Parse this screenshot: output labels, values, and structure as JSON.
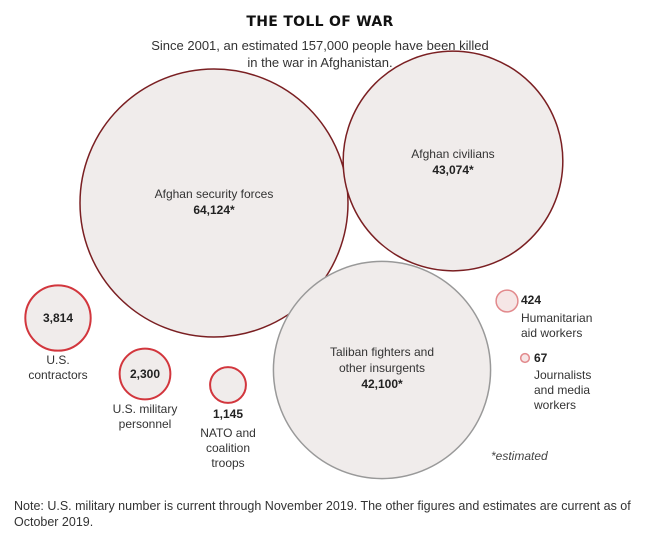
{
  "title": "THE TOLL OF WAR",
  "subtitle": "Since 2001, an estimated 157,000 people have been killed in the war in Afghanistan.",
  "note": "Note: U.S. military number is current through November 2019. The other figures and estimates are current as of October 2019.",
  "footnote": "*estimated",
  "colors": {
    "fill_main": "#f0eceb",
    "stroke_main": "#7a1f22",
    "stroke_taliban": "#999999",
    "stroke_us": "#d2363d",
    "stroke_small": "#e2898c",
    "fill_small": "#f6e6e6"
  },
  "chart_data": {
    "type": "bubble",
    "title": "THE TOLL OF WAR",
    "subtitle": "Since 2001, an estimated 157,000 people have been killed in the war in Afghanistan.",
    "unit": "people killed",
    "items": [
      {
        "key": "afghan_security",
        "name_lines": [
          "Afghan security forces"
        ],
        "value": 64124,
        "label": "64,124*",
        "estimated": true
      },
      {
        "key": "afghan_civilians",
        "name_lines": [
          "Afghan civilians"
        ],
        "value": 43074,
        "label": "43,074*",
        "estimated": true
      },
      {
        "key": "taliban",
        "name_lines": [
          "Taliban fighters and",
          "other insurgents"
        ],
        "value": 42100,
        "label": "42,100*",
        "estimated": true
      },
      {
        "key": "us_contractors",
        "name_lines": [
          "U.S.",
          "contractors"
        ],
        "value": 3814,
        "label": "3,814",
        "estimated": false
      },
      {
        "key": "us_military",
        "name_lines": [
          "U.S. military",
          "personnel"
        ],
        "value": 2300,
        "label": "2,300",
        "estimated": false
      },
      {
        "key": "nato",
        "name_lines": [
          "NATO and",
          "coalition",
          "troops"
        ],
        "value": 1145,
        "label": "1,145",
        "estimated": false
      },
      {
        "key": "humanitarian",
        "name_lines": [
          "Humanitarian",
          "aid workers"
        ],
        "value": 424,
        "label": "424",
        "estimated": false
      },
      {
        "key": "journalists",
        "name_lines": [
          "Journalists",
          "and media",
          "workers"
        ],
        "value": 67,
        "label": "67",
        "estimated": false
      }
    ]
  }
}
